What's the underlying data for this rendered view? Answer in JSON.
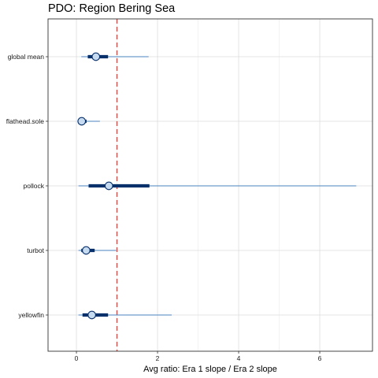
{
  "chart_data": {
    "type": "forest",
    "title": "PDO: Region Bering Sea",
    "xlabel": "Avg ratio: Era 1 slope / Era 2 slope",
    "ylabel": "",
    "xlim": [
      -0.7,
      7.3
    ],
    "xticks": [
      0,
      2,
      4,
      6
    ],
    "grid": true,
    "reference_line": {
      "x": 1,
      "style": "dashed",
      "color": "#e8423f"
    },
    "categories": [
      "global mean",
      "flathead.sole",
      "pollock",
      "turbot",
      "yellowfin"
    ],
    "series": [
      {
        "category": "global mean",
        "estimate": 0.48,
        "inner": [
          0.28,
          0.78
        ],
        "outer": [
          0.12,
          1.78
        ]
      },
      {
        "category": "flathead.sole",
        "estimate": 0.13,
        "inner": [
          0.08,
          0.25
        ],
        "outer": [
          0.03,
          0.58
        ]
      },
      {
        "category": "pollock",
        "estimate": 0.8,
        "inner": [
          0.3,
          1.8
        ],
        "outer": [
          0.05,
          6.9
        ]
      },
      {
        "category": "turbot",
        "estimate": 0.24,
        "inner": [
          0.12,
          0.45
        ],
        "outer": [
          0.05,
          0.98
        ]
      },
      {
        "category": "yellowfin",
        "estimate": 0.38,
        "inner": [
          0.15,
          0.78
        ],
        "outer": [
          0.05,
          2.35
        ]
      }
    ],
    "colors": {
      "point_fill": "#c6dbef",
      "point_stroke": "#08306b",
      "inner_interval": "#08306b",
      "outer_interval": "#4a86c0",
      "grid": "#dddddd",
      "panel_border": "#333333"
    }
  }
}
